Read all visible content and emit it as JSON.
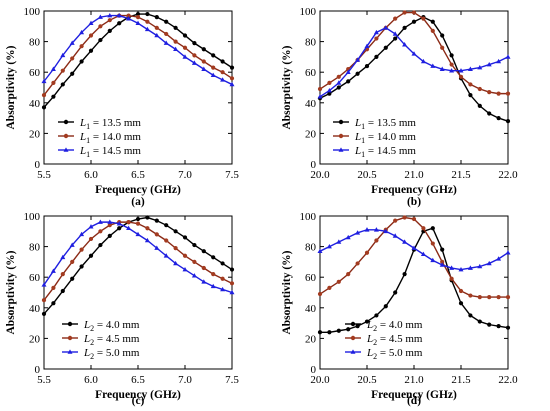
{
  "chart_data": [
    {
      "type": "line",
      "panel_label": "(a)",
      "xlabel": "Frequency (GHz)",
      "ylabel": "Absorptivity (%)",
      "xlim": [
        5.5,
        7.5
      ],
      "ylim": [
        0,
        100
      ],
      "xticks": [
        "5.5",
        "6.0",
        "6.5",
        "7.0",
        "7.5"
      ],
      "yticks": [
        "0",
        "20",
        "40",
        "60",
        "80",
        "100"
      ],
      "legend_position": "bottom-left",
      "legend_symbol": "L",
      "legend_subscript": "1",
      "x": [
        5.5,
        5.6,
        5.7,
        5.8,
        5.9,
        6.0,
        6.1,
        6.2,
        6.3,
        6.4,
        6.5,
        6.6,
        6.7,
        6.8,
        6.9,
        7.0,
        7.1,
        7.2,
        7.3,
        7.4,
        7.5
      ],
      "series": [
        {
          "name": " = 13.5 mm",
          "color": "#000000",
          "values": [
            37,
            44,
            52,
            59,
            67,
            74,
            81,
            87,
            92,
            96,
            98,
            98,
            96,
            93,
            89,
            84,
            79,
            75,
            71,
            67,
            63
          ]
        },
        {
          "name": " = 14.0 mm",
          "color": "#8b2a16",
          "values": [
            45,
            53,
            61,
            69,
            77,
            84,
            90,
            94,
            97,
            97,
            96,
            93,
            89,
            85,
            80,
            76,
            71,
            67,
            63,
            60,
            56
          ]
        },
        {
          "name": " = 14.5 mm",
          "color": "#1f1fe0",
          "values": [
            54,
            62,
            71,
            79,
            86,
            92,
            96,
            97,
            97,
            95,
            92,
            88,
            84,
            79,
            75,
            70,
            66,
            62,
            58,
            55,
            52
          ]
        }
      ]
    },
    {
      "type": "line",
      "panel_label": "(b)",
      "xlabel": "Frequency (GHz)",
      "ylabel": "Absorptivity (%)",
      "xlim": [
        20.0,
        22.0
      ],
      "ylim": [
        0,
        100
      ],
      "xticks": [
        "20.0",
        "20.5",
        "21.0",
        "21.5",
        "22.0"
      ],
      "yticks": [
        "0",
        "20",
        "40",
        "60",
        "80",
        "100"
      ],
      "legend_position": "bottom-left",
      "legend_symbol": "L",
      "legend_subscript": "1",
      "x": [
        20.0,
        20.1,
        20.2,
        20.3,
        20.4,
        20.5,
        20.6,
        20.7,
        20.8,
        20.9,
        21.0,
        21.1,
        21.2,
        21.3,
        21.4,
        21.5,
        21.6,
        21.7,
        21.8,
        21.9,
        22.0
      ],
      "series": [
        {
          "name": " = 13.5 mm",
          "color": "#000000",
          "values": [
            43,
            46,
            50,
            54,
            59,
            64,
            70,
            76,
            82,
            89,
            93,
            96,
            93,
            84,
            71,
            56,
            45,
            38,
            33,
            30,
            28
          ]
        },
        {
          "name": " = 14.0 mm",
          "color": "#8b2a16",
          "values": [
            49,
            53,
            57,
            62,
            68,
            75,
            82,
            89,
            95,
            99,
            99,
            95,
            87,
            76,
            65,
            57,
            52,
            49,
            47,
            46,
            46
          ]
        },
        {
          "name": " = 14.5 mm",
          "color": "#1f1fe0",
          "values": [
            44,
            48,
            53,
            60,
            68,
            77,
            86,
            89,
            85,
            78,
            72,
            67,
            64,
            62,
            61,
            61,
            62,
            63,
            65,
            67,
            70
          ]
        }
      ]
    },
    {
      "type": "line",
      "panel_label": "(c)",
      "xlabel": "Frequency (GHz)",
      "ylabel": "Absorptivity (%)",
      "xlim": [
        5.5,
        7.5
      ],
      "ylim": [
        0,
        100
      ],
      "xticks": [
        "5.5",
        "6.0",
        "6.5",
        "7.0",
        "7.5"
      ],
      "yticks": [
        "0",
        "20",
        "40",
        "60",
        "80",
        "100"
      ],
      "legend_position": "bottom-right",
      "legend_symbol": "L",
      "legend_subscript": "2",
      "x": [
        5.5,
        5.6,
        5.7,
        5.8,
        5.9,
        6.0,
        6.1,
        6.2,
        6.3,
        6.4,
        6.5,
        6.6,
        6.7,
        6.8,
        6.9,
        7.0,
        7.1,
        7.2,
        7.3,
        7.4,
        7.5
      ],
      "series": [
        {
          "name": " = 4.0 mm",
          "color": "#000000",
          "values": [
            36,
            43,
            51,
            59,
            67,
            74,
            81,
            87,
            92,
            96,
            98,
            99,
            97,
            94,
            90,
            86,
            81,
            77,
            73,
            69,
            65
          ]
        },
        {
          "name": " = 4.5 mm",
          "color": "#8b2a16",
          "values": [
            45,
            53,
            62,
            70,
            78,
            85,
            90,
            94,
            96,
            96,
            95,
            92,
            88,
            84,
            79,
            74,
            70,
            66,
            62,
            59,
            56
          ]
        },
        {
          "name": " = 5.0 mm",
          "color": "#1f1fe0",
          "values": [
            55,
            64,
            73,
            81,
            88,
            93,
            96,
            96,
            95,
            92,
            88,
            84,
            79,
            74,
            69,
            65,
            61,
            57,
            54,
            52,
            50
          ]
        }
      ]
    },
    {
      "type": "line",
      "panel_label": "(d)",
      "xlabel": "Frequency (GHz)",
      "ylabel": "Absorptivity (%)",
      "xlim": [
        20.0,
        22.0
      ],
      "ylim": [
        0,
        100
      ],
      "xticks": [
        "20.0",
        "20.5",
        "21.0",
        "21.5",
        "22.0"
      ],
      "yticks": [
        "0",
        "20",
        "40",
        "60",
        "80",
        "100"
      ],
      "legend_position": "bottom-right",
      "legend_symbol": "L",
      "legend_subscript": "2",
      "x": [
        20.0,
        20.1,
        20.2,
        20.3,
        20.4,
        20.5,
        20.6,
        20.7,
        20.8,
        20.9,
        21.0,
        21.1,
        21.2,
        21.3,
        21.4,
        21.5,
        21.6,
        21.7,
        21.8,
        21.9,
        22.0
      ],
      "series": [
        {
          "name": " = 4.0 mm",
          "color": "#000000",
          "values": [
            24,
            24,
            25,
            26,
            28,
            31,
            35,
            41,
            50,
            62,
            78,
            90,
            92,
            78,
            58,
            43,
            35,
            31,
            29,
            28,
            27
          ]
        },
        {
          "name": " = 4.5 mm",
          "color": "#8b2a16",
          "values": [
            49,
            53,
            57,
            62,
            69,
            76,
            84,
            91,
            97,
            99,
            98,
            92,
            82,
            70,
            59,
            51,
            48,
            47,
            47,
            47,
            47
          ]
        },
        {
          "name": " = 5.0 mm",
          "color": "#1f1fe0",
          "values": [
            77,
            80,
            83,
            86,
            89,
            91,
            91,
            90,
            87,
            83,
            79,
            75,
            71,
            68,
            66,
            65,
            66,
            67,
            69,
            72,
            76
          ]
        }
      ]
    }
  ]
}
